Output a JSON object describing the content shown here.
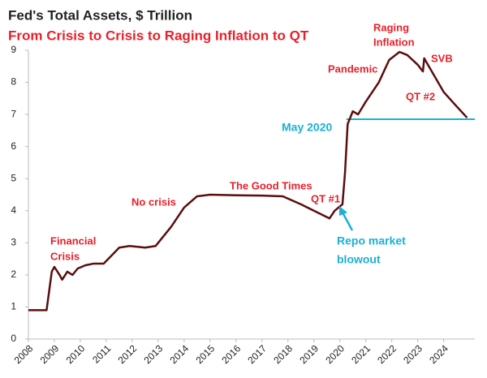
{
  "chart_data": {
    "type": "line",
    "title": "Fed's Total Assets, $ Trillion",
    "subtitle": "From Crisis to Crisis to Raging Inflation to QT",
    "x": [
      2008.0,
      2008.7,
      2008.8,
      2008.9,
      2009.0,
      2009.2,
      2009.3,
      2009.5,
      2009.7,
      2009.9,
      2010.2,
      2010.5,
      2010.9,
      2011.5,
      2011.9,
      2012.5,
      2012.9,
      2013.5,
      2014.0,
      2014.5,
      2015.0,
      2016.0,
      2017.0,
      2017.8,
      2018.5,
      2019.0,
      2019.6,
      2019.8,
      2020.1,
      2020.2,
      2020.3,
      2020.5,
      2020.7,
      2021.0,
      2021.5,
      2021.9,
      2022.3,
      2022.6,
      2023.0,
      2023.2,
      2023.25,
      2023.5,
      2024.0,
      2024.5,
      2024.9
    ],
    "series": [
      {
        "name": "Total Assets",
        "color": "#5a0e0e",
        "values": [
          0.9,
          0.9,
          1.5,
          2.1,
          2.25,
          2.0,
          1.85,
          2.1,
          2.0,
          2.2,
          2.3,
          2.35,
          2.35,
          2.85,
          2.9,
          2.85,
          2.9,
          3.5,
          4.1,
          4.45,
          4.5,
          4.48,
          4.47,
          4.45,
          4.2,
          4.0,
          3.76,
          4.0,
          4.2,
          5.2,
          6.7,
          7.1,
          7.0,
          7.4,
          8.0,
          8.7,
          8.95,
          8.85,
          8.55,
          8.34,
          8.75,
          8.4,
          7.7,
          7.25,
          6.9
        ]
      }
    ],
    "xlim": [
      2008,
      2025.2
    ],
    "xticks": [
      2008,
      2009,
      2010,
      2011,
      2012,
      2013,
      2014,
      2015,
      2016,
      2017,
      2018,
      2019,
      2020,
      2021,
      2022,
      2023,
      2024
    ],
    "ylim": [
      0,
      9
    ],
    "yticks": [
      0,
      1,
      2,
      3,
      4,
      5,
      6,
      7,
      8,
      9
    ],
    "reference_line": {
      "value": 6.85,
      "color": "#1ab0d8"
    },
    "annotations": [
      "Financial",
      "Crisis",
      "No crisis",
      "The Good Times",
      "QT #1",
      "Pandemic",
      "Raging",
      "Inflation",
      "SVB",
      "QT #2",
      "May 2020",
      "Repo market",
      "blowout"
    ]
  }
}
